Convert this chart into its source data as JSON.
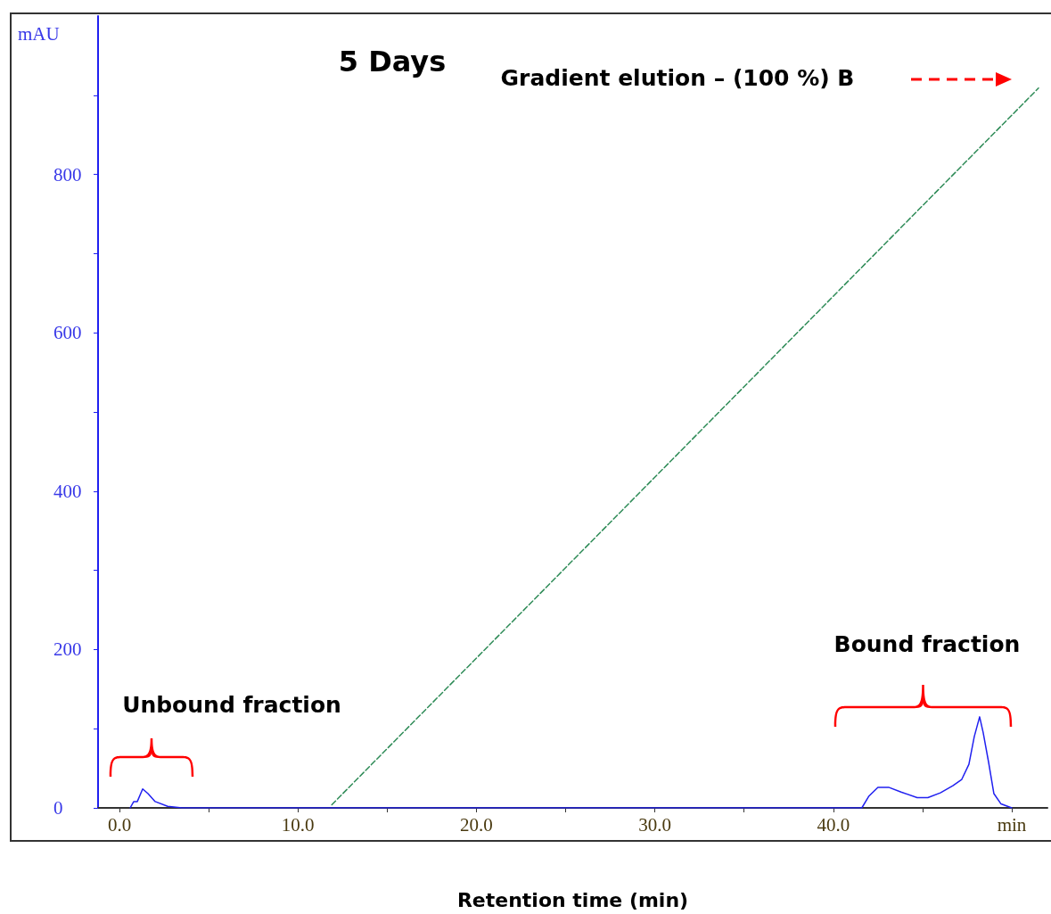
{
  "chart_data": {
    "type": "line",
    "title": "5 Days",
    "xlabel": "Retention time (min)",
    "ylabel": "mAU",
    "xlim": [
      -1.2,
      52
    ],
    "ylim": [
      0,
      1000
    ],
    "xticks": [
      {
        "value": 0,
        "label": "0.0"
      },
      {
        "value": 5,
        "label": null
      },
      {
        "value": 10,
        "label": "10.0"
      },
      {
        "value": 15,
        "label": null
      },
      {
        "value": 20,
        "label": "20.0"
      },
      {
        "value": 25,
        "label": null
      },
      {
        "value": 30,
        "label": "30.0"
      },
      {
        "value": 35,
        "label": null
      },
      {
        "value": 40,
        "label": "40.0"
      },
      {
        "value": 45,
        "label": null
      },
      {
        "value": 50,
        "label": "min"
      }
    ],
    "yticks": [
      0,
      {
        "value": 100,
        "label": null
      },
      200,
      {
        "value": 300,
        "label": null
      },
      400,
      {
        "value": 500,
        "label": null
      },
      600,
      {
        "value": 700,
        "label": null
      },
      800,
      {
        "value": 900,
        "label": null
      }
    ],
    "grid": false,
    "marker": "none",
    "series": [
      {
        "color": "#2020f0",
        "line_style": "solid",
        "x": [
          0.6,
          0.8,
          1.0,
          1.3,
          1.6,
          2.0,
          2.7,
          3.5,
          41.6,
          42.0,
          42.5,
          43.1,
          43.8,
          44.7,
          45.3,
          46.0,
          46.7,
          47.2,
          47.6,
          47.9,
          48.2,
          48.4,
          48.7,
          49.0,
          49.4,
          50.0
        ],
        "values": [
          0,
          8,
          8,
          24,
          18,
          8,
          2,
          0,
          0,
          15,
          26,
          26,
          20,
          13,
          13,
          19,
          28,
          36,
          55,
          90,
          115,
          95,
          58,
          18,
          5,
          0
        ]
      },
      {
        "color": "#2e8b57",
        "line_style": "dashed",
        "x": [
          11.9,
          51.5
        ],
        "values": [
          4,
          909
        ]
      }
    ],
    "annotations": [
      "Gradient elution – (100 %) B",
      "Unbound fraction",
      "Bound fraction"
    ]
  }
}
